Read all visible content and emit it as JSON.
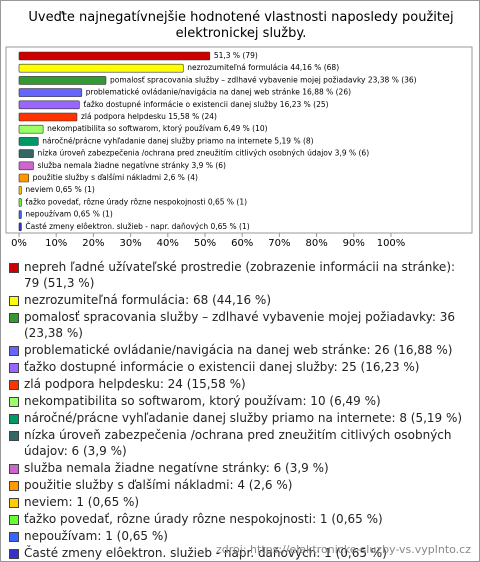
{
  "chart_data": {
    "type": "bar",
    "orientation": "horizontal",
    "title": "Uveďte najnegatívnejšie hodnotené vlastnosti naposledy použitej elektronickej služby.",
    "categories": [
      "nepreh ľadné užívateľské prostredie (zobrazenie informácii na stránke): 79 (51,3 %)",
      "nezrozumiteľná formulácia: 68 (44,16 %)",
      "pomalosť spracovania služby – zdlhavé vybavenie mojej požiadavky: 36 (23,38 %)",
      "problematické ovládanie/navigácia na danej web stránke: 26 (16,88 %)",
      "ťažko dostupné informácie o existencii danej služby: 25 (16,23 %)",
      "zlá podpora helpdesku: 24 (15,58 %)",
      "nekompatibilita so softwarom, ktorý používam: 10 (6,49 %)",
      "náročné/prácne vyhľadanie danej služby priamo na internete: 8 (5,19 %)",
      "nízka úroveň zabezpečenia /ochrana pred zneužitím citlivých osobných údajov: 6 (3,9 %)",
      "služba nemala žiadne negatívne stránky: 6 (3,9 %)",
      "použitie služby s ďalšími nákladmi: 4 (2,6 %)",
      "neviem: 1 (0,65 %)",
      "ťažko povedať, rôzne úrady rôzne nespokojnosti: 1 (0,65 %)",
      "nepoužívam: 1 (0,65 %)",
      "Časté zmeny elôektron. služieb - napr. daňových: 1 (0,65 %)"
    ],
    "values": [
      51.3,
      44.16,
      23.38,
      16.88,
      16.23,
      15.58,
      6.49,
      5.19,
      3.9,
      3.9,
      2.6,
      0.65,
      0.65,
      0.65,
      0.65
    ],
    "value_labels": [
      "51,3 % (79)",
      "nezrozumiteľná formulácia 44,16 % (68)",
      "pomalosť spracovania služby – zdlhavé vybavenie mojej požiadavky 23,38 % (36)",
      "problematické ovládanie/navigácia na danej web stránke 16,88 % (26)",
      "ťažko dostupné informácie o existencii danej služby 16,23 % (25)",
      "zlá podpora helpdesku 15,58 % (24)",
      "nekompatibilita so softwarom, ktorý používam 6,49 % (10)",
      "náročné/prácne vyhľadanie danej služby priamo na internete 5,19 % (8)",
      "nízka úroveň zabezpečenia /ochrana pred zneužitím citlivých osobných údajov 3,9 % (6)",
      "služba nemala žiadne negatívne stránky 3,9 % (6)",
      "použitie služby s ďalšími nákladmi 2,6 % (4)",
      "neviem 0,65 % (1)",
      "ťažko povedať, rôzne úrady rôzne nespokojnosti 0,65 % (1)",
      "nepoužívam 0,65 % (1)",
      "Časté zmeny elôektron. služieb - napr. daňových 0,65 % (1)"
    ],
    "colors": [
      "#cc0000",
      "#ffff00",
      "#339933",
      "#6666ff",
      "#9966ff",
      "#ff3300",
      "#99ff66",
      "#009966",
      "#336666",
      "#cc66cc",
      "#ff9900",
      "#ffcc00",
      "#66ff33",
      "#3366ff",
      "#3333cc"
    ],
    "xlim": [
      0,
      120
    ],
    "xticks": [
      {
        "value": 0,
        "label": "0%"
      },
      {
        "value": 10,
        "label": "10%"
      },
      {
        "value": 20,
        "label": "20%"
      },
      {
        "value": 30,
        "label": "30%"
      },
      {
        "value": 40,
        "label": "40%"
      },
      {
        "value": 50,
        "label": "50%"
      },
      {
        "value": 60,
        "label": "60%"
      },
      {
        "value": 70,
        "label": "70%"
      },
      {
        "value": 80,
        "label": "80%"
      },
      {
        "value": 90,
        "label": "90%"
      },
      {
        "value": 100,
        "label": "100%"
      }
    ],
    "source": "zdroj: https://elektronicke-sluzby-vs.vyplnto.cz"
  }
}
